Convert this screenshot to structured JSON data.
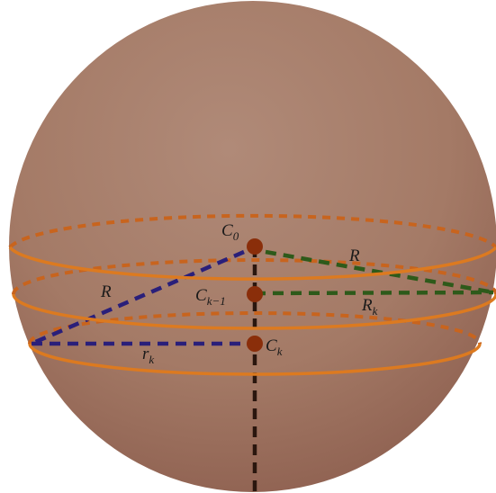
{
  "labels": {
    "c0": {
      "base": "C",
      "sub": "0"
    },
    "ck1": {
      "base": "C",
      "sub": "k−1"
    },
    "ck": {
      "base": "C",
      "sub": "k"
    },
    "r_left": {
      "base": "R"
    },
    "r_right": {
      "base": "R"
    },
    "rk_upper": {
      "base": "R",
      "sub": "k"
    },
    "rk_lower": {
      "base": "r",
      "sub": "k"
    }
  }
}
